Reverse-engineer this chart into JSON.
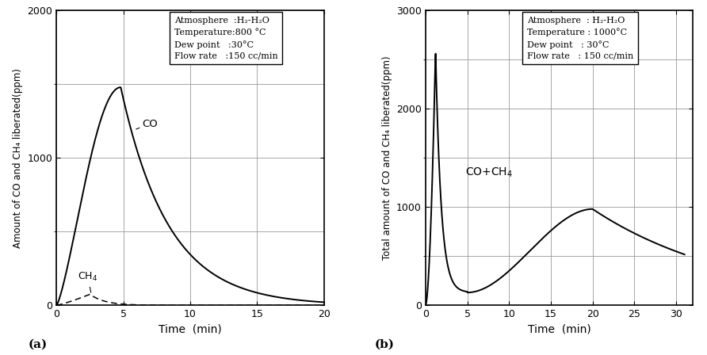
{
  "panel_a": {
    "ylabel": "Amount of CO and CH₄ liberated(ppm)",
    "xlabel": "Time  (min)",
    "xlim": [
      0,
      20
    ],
    "ylim": [
      0,
      2000
    ],
    "xticks": [
      0,
      5,
      10,
      15,
      20
    ],
    "yticks": [
      0,
      1000,
      2000
    ],
    "box_lines": [
      "Atmosphere  :H₂-H₂O",
      "Temperature:800 °C",
      "Dew point   :30°C",
      "Flow rate   :150 cc/min"
    ],
    "label": "(a)"
  },
  "panel_b": {
    "ylabel": "Total amount of CO and CH₄ liberated(ppm)",
    "xlabel": "Time  (min)",
    "xlim": [
      0,
      32
    ],
    "ylim": [
      0,
      3000
    ],
    "xticks": [
      0,
      5,
      10,
      15,
      20,
      25,
      30
    ],
    "yticks": [
      0,
      1000,
      2000,
      3000
    ],
    "box_lines": [
      "Atmosphere  : H₂-H₂O",
      "Temperature : 1000°C",
      "Dew point   : 30°C",
      "Flow rate   : 150 cc/min"
    ],
    "label": "(b)"
  },
  "line_color": "#000000",
  "bg_color": "#ffffff",
  "grid_color": "#999999"
}
